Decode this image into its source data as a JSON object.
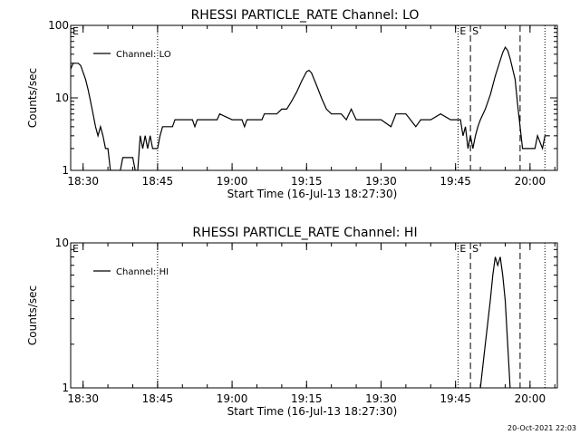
{
  "footer": {
    "timestamp": "20-Oct-2021 22:03"
  },
  "chart_data": [
    {
      "type": "line",
      "title": "RHESSI PARTICLE_RATE Channel: LO",
      "xlabel": "Start Time (16-Jul-13 18:27:30)",
      "ylabel": "Counts/sec",
      "y_scale": "log",
      "xlim": [
        "18:27:30",
        "20:05:30"
      ],
      "ylim": [
        1,
        100
      ],
      "x_ticks": [
        "18:30",
        "18:45",
        "19:00",
        "19:15",
        "19:30",
        "19:45",
        "20:00"
      ],
      "y_ticks": [
        "1",
        "10",
        "100"
      ],
      "grid": false,
      "legend_position": "top-left",
      "series": [
        {
          "name": "Channel: LO",
          "color": "#000000",
          "points": [
            [
              "18:27:30",
              25
            ],
            [
              "18:28:00",
              30
            ],
            [
              "18:29:00",
              30
            ],
            [
              "18:29:30",
              28
            ],
            [
              "18:30:30",
              18
            ],
            [
              "18:31:00",
              13
            ],
            [
              "18:31:30",
              9
            ],
            [
              "18:32:00",
              6
            ],
            [
              "18:32:30",
              4
            ],
            [
              "18:33:00",
              3
            ],
            [
              "18:33:30",
              4
            ],
            [
              "18:34:00",
              3
            ],
            [
              "18:34:30",
              2
            ],
            [
              "18:35:00",
              2
            ],
            [
              "18:35:30",
              1
            ],
            [
              "18:37:30",
              1
            ],
            [
              "18:38:00",
              1.5
            ],
            [
              "18:40:00",
              1.5
            ],
            [
              "18:40:30",
              1
            ],
            [
              "18:41:00",
              1
            ],
            [
              "18:41:30",
              3
            ],
            [
              "18:42:00",
              2
            ],
            [
              "18:42:30",
              3
            ],
            [
              "18:43:00",
              2
            ],
            [
              "18:43:30",
              3
            ],
            [
              "18:44:00",
              2
            ],
            [
              "18:45:00",
              2
            ],
            [
              "18:45:30",
              3
            ],
            [
              "18:46:00",
              4
            ],
            [
              "18:48:00",
              4
            ],
            [
              "18:48:30",
              5
            ],
            [
              "18:52:00",
              5
            ],
            [
              "18:52:30",
              4
            ],
            [
              "18:53:00",
              5
            ],
            [
              "18:57:00",
              5
            ],
            [
              "18:57:30",
              6
            ],
            [
              "19:00:00",
              5
            ],
            [
              "19:02:00",
              5
            ],
            [
              "19:02:30",
              4
            ],
            [
              "19:03:00",
              5
            ],
            [
              "19:06:00",
              5
            ],
            [
              "19:06:30",
              6
            ],
            [
              "19:09:00",
              6
            ],
            [
              "19:10:00",
              7
            ],
            [
              "19:11:00",
              7
            ],
            [
              "19:12:00",
              9
            ],
            [
              "19:13:00",
              12
            ],
            [
              "19:14:00",
              17
            ],
            [
              "19:15:00",
              23
            ],
            [
              "19:15:30",
              24
            ],
            [
              "19:16:00",
              22
            ],
            [
              "19:17:00",
              15
            ],
            [
              "19:18:00",
              10
            ],
            [
              "19:19:00",
              7
            ],
            [
              "19:20:00",
              6
            ],
            [
              "19:22:00",
              6
            ],
            [
              "19:23:00",
              5
            ],
            [
              "19:24:00",
              7
            ],
            [
              "19:25:00",
              5
            ],
            [
              "19:27:00",
              5
            ],
            [
              "19:30:00",
              5
            ],
            [
              "19:32:00",
              4
            ],
            [
              "19:33:00",
              6
            ],
            [
              "19:35:00",
              6
            ],
            [
              "19:37:00",
              4
            ],
            [
              "19:38:00",
              5
            ],
            [
              "19:40:00",
              5
            ],
            [
              "19:42:00",
              6
            ],
            [
              "19:44:00",
              5
            ],
            [
              "19:45:30",
              5
            ],
            [
              "19:46:00",
              5
            ],
            [
              "19:46:30",
              3
            ],
            [
              "19:47:00",
              4
            ],
            [
              "19:47:30",
              2
            ],
            [
              "19:48:00",
              3
            ],
            [
              "19:48:30",
              2
            ],
            [
              "19:49:00",
              3
            ],
            [
              "19:49:30",
              4
            ],
            [
              "19:50:00",
              5
            ],
            [
              "19:51:00",
              7
            ],
            [
              "19:52:00",
              11
            ],
            [
              "19:53:00",
              20
            ],
            [
              "19:54:00",
              33
            ],
            [
              "19:54:30",
              42
            ],
            [
              "19:55:00",
              50
            ],
            [
              "19:55:30",
              45
            ],
            [
              "19:56:00",
              35
            ],
            [
              "19:57:00",
              18
            ],
            [
              "19:57:30",
              8
            ],
            [
              "19:58:00",
              4
            ],
            [
              "19:58:30",
              2
            ],
            [
              "20:01:00",
              2
            ],
            [
              "20:01:30",
              3
            ],
            [
              "20:02:30",
              2
            ],
            [
              "20:03:00",
              3
            ],
            [
              "20:04:00",
              3
            ]
          ]
        }
      ],
      "markers": [
        {
          "time": "18:45:00",
          "style": "dotted",
          "label": ""
        },
        {
          "time": "19:45:30",
          "style": "dotted",
          "label": "E"
        },
        {
          "time": "19:48:00",
          "style": "dashed",
          "label": "S"
        },
        {
          "time": "19:58:00",
          "style": "dashed",
          "label": ""
        },
        {
          "time": "20:03:00",
          "style": "dotted",
          "label": ""
        }
      ],
      "start_marker_label": "E"
    },
    {
      "type": "line",
      "title": "RHESSI PARTICLE_RATE Channel: HI",
      "xlabel": "Start Time (16-Jul-13 18:27:30)",
      "ylabel": "Counts/sec",
      "y_scale": "log",
      "xlim": [
        "18:27:30",
        "20:05:30"
      ],
      "ylim": [
        1,
        10
      ],
      "x_ticks": [
        "18:30",
        "18:45",
        "19:00",
        "19:15",
        "19:30",
        "19:45",
        "20:00"
      ],
      "y_ticks": [
        "1",
        "10"
      ],
      "grid": false,
      "legend_position": "top-left",
      "series": [
        {
          "name": "Channel: HI",
          "color": "#000000",
          "points": [
            [
              "19:50:00",
              1
            ],
            [
              "19:51:00",
              2
            ],
            [
              "19:52:00",
              4
            ],
            [
              "19:52:30",
              6
            ],
            [
              "19:53:00",
              8
            ],
            [
              "19:53:30",
              7
            ],
            [
              "19:54:00",
              8
            ],
            [
              "19:54:30",
              6
            ],
            [
              "19:55:00",
              4
            ],
            [
              "19:55:30",
              2
            ],
            [
              "19:56:00",
              1
            ]
          ]
        }
      ],
      "markers": [
        {
          "time": "18:45:00",
          "style": "dotted",
          "label": ""
        },
        {
          "time": "19:45:30",
          "style": "dotted",
          "label": "E"
        },
        {
          "time": "19:48:00",
          "style": "dashed",
          "label": "S"
        },
        {
          "time": "19:58:00",
          "style": "dashed",
          "label": ""
        },
        {
          "time": "20:03:00",
          "style": "dotted",
          "label": ""
        }
      ],
      "start_marker_label": "E"
    }
  ]
}
